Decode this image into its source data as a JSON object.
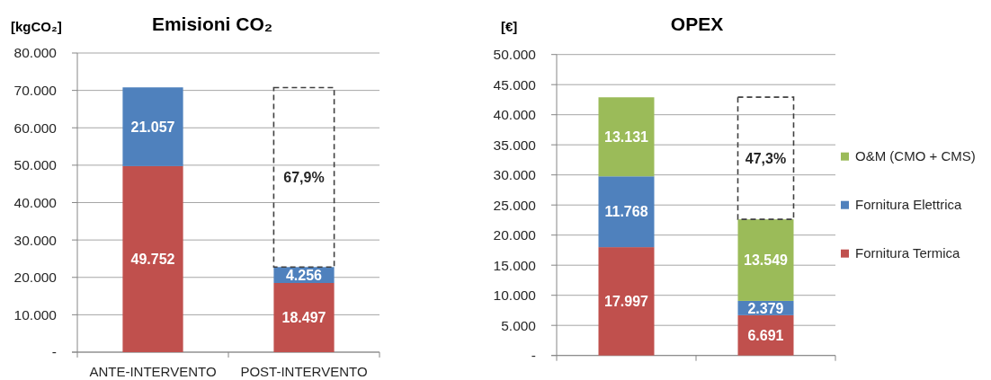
{
  "chart_data": [
    {
      "type": "bar",
      "title": "Emisioni CO₂",
      "ylabel": "[kgCO₂]",
      "categories": [
        "ANTE-INTERVENTO",
        "POST-INTERVENTO"
      ],
      "stacked": true,
      "grid": "y",
      "ylim": [
        0,
        80000
      ],
      "yticks": [
        {
          "value": 0,
          "label": "-"
        },
        {
          "value": 10000,
          "label": "10.000"
        },
        {
          "value": 20000,
          "label": "20.000"
        },
        {
          "value": 30000,
          "label": "30.000"
        },
        {
          "value": 40000,
          "label": "40.000"
        },
        {
          "value": 50000,
          "label": "50.000"
        },
        {
          "value": 60000,
          "label": "60.000"
        },
        {
          "value": 70000,
          "label": "70.000"
        },
        {
          "value": 80000,
          "label": "80.000"
        }
      ],
      "annotations": [
        "67,9%"
      ],
      "series": [
        {
          "color": "#c0504d",
          "values": [
            49752,
            18497
          ],
          "value_labels": [
            "49.752",
            "18.497"
          ]
        },
        {
          "color": "#4f81bd",
          "values": [
            21057,
            4256
          ],
          "value_labels": [
            "21.057",
            "4.256"
          ]
        },
        {
          "color": "#404040",
          "line_style": "dashed",
          "values": [
            null,
            48000
          ]
        }
      ]
    },
    {
      "type": "bar",
      "title": "OPEX",
      "ylabel": "[€]",
      "categories": [
        null,
        null
      ],
      "stacked": true,
      "grid": "y",
      "legend": "right",
      "ylim": [
        0,
        50000
      ],
      "yticks": [
        {
          "value": 0,
          "label": "-"
        },
        {
          "value": 5000,
          "label": "5.000"
        },
        {
          "value": 10000,
          "label": "10.000"
        },
        {
          "value": 15000,
          "label": "15.000"
        },
        {
          "value": 20000,
          "label": "20.000"
        },
        {
          "value": 25000,
          "label": "25.000"
        },
        {
          "value": 30000,
          "label": "30.000"
        },
        {
          "value": 35000,
          "label": "35.000"
        },
        {
          "value": 40000,
          "label": "40.000"
        },
        {
          "value": 45000,
          "label": "45.000"
        },
        {
          "value": 50000,
          "label": "50.000"
        }
      ],
      "annotations": [
        "47,3%"
      ],
      "series": [
        {
          "name": "Fornitura Termica",
          "color": "#c0504d",
          "values": [
            17997,
            6691
          ],
          "value_labels": [
            "17.997",
            "6.691"
          ]
        },
        {
          "name": "Fornitura Elettrica",
          "color": "#4f81bd",
          "values": [
            11768,
            2379
          ],
          "value_labels": [
            "11.768",
            "2.379"
          ]
        },
        {
          "name": "O&M (CMO + CMS)",
          "color": "#9bbb59",
          "values": [
            13131,
            13549
          ],
          "value_labels": [
            "13.131",
            "13.549"
          ]
        },
        {
          "color": "#404040",
          "line_style": "dashed",
          "values": [
            null,
            20300
          ]
        }
      ]
    }
  ]
}
